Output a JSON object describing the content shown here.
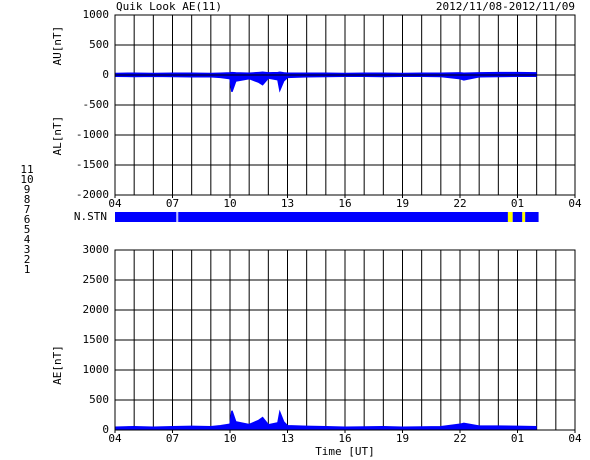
{
  "header": {
    "title": "Quik Look AE(11)",
    "date_range": "2012/11/08-2012/11/09",
    "x_label": "Time [UT]"
  },
  "stations": [
    {
      "label": "11",
      "color": "#00d8d8"
    },
    {
      "label": "10",
      "color": "#e000e0"
    },
    {
      "label": "9",
      "color": "#2020c0"
    },
    {
      "label": "8",
      "color": "#f0e000"
    },
    {
      "label": "7",
      "color": "#20c020"
    },
    {
      "label": "6",
      "color": "#e00000"
    },
    {
      "label": "5",
      "color": "#d0d0d0"
    },
    {
      "label": "4",
      "color": "#909090"
    },
    {
      "label": "3",
      "color": "#008080"
    },
    {
      "label": "2",
      "color": "#8000a0"
    },
    {
      "label": "1",
      "color": "#2020e0"
    }
  ],
  "nstn": {
    "label": "N.STN",
    "segments": [
      {
        "x0": 4,
        "x1": 7.2,
        "color": "#0000ff"
      },
      {
        "x0": 7.2,
        "x1": 7.3,
        "color": "#c0c0ff"
      },
      {
        "x0": 7.3,
        "x1": 24.5,
        "color": "#0000ff"
      },
      {
        "x0": 24.5,
        "x1": 24.75,
        "color": "#ffff00"
      },
      {
        "x0": 24.75,
        "x1": 25.25,
        "color": "#0000ff"
      },
      {
        "x0": 25.25,
        "x1": 25.4,
        "color": "#ffff00"
      },
      {
        "x0": 25.4,
        "x1": 26.1,
        "color": "#0000ff"
      }
    ]
  },
  "chart_data": [
    {
      "type": "area",
      "ylabels": [
        "AU[nT]",
        "AL[nT]"
      ],
      "x": [
        4,
        5,
        6,
        7,
        8,
        9,
        9.5,
        10,
        10.1,
        10.3,
        11,
        11.5,
        11.7,
        12,
        12.5,
        12.6,
        12.8,
        13,
        14,
        15,
        16,
        17,
        18,
        19,
        20,
        21,
        22,
        22.2,
        23,
        24,
        25,
        26
      ],
      "series": [
        {
          "color": "#0000ff",
          "values": [
            25,
            30,
            25,
            30,
            30,
            25,
            30,
            35,
            40,
            35,
            30,
            40,
            45,
            35,
            40,
            45,
            35,
            30,
            30,
            30,
            25,
            30,
            30,
            25,
            30,
            30,
            35,
            30,
            35,
            40,
            40,
            35
          ]
        },
        {
          "color": "#0000ff",
          "values": [
            -20,
            -25,
            -20,
            -25,
            -30,
            -30,
            -40,
            -60,
            -280,
            -100,
            -60,
            -120,
            -160,
            -50,
            -80,
            -250,
            -100,
            -40,
            -30,
            -25,
            -20,
            -20,
            -25,
            -20,
            -20,
            -25,
            -60,
            -80,
            -30,
            -25,
            -20,
            -20
          ]
        }
      ],
      "xlim": [
        4,
        28
      ],
      "xticks": [
        {
          "value": 4,
          "label": "04"
        },
        {
          "value": 7,
          "label": "07"
        },
        10,
        13,
        16,
        19,
        22,
        {
          "value": 25,
          "label": "01"
        },
        {
          "value": 28,
          "label": "04"
        }
      ],
      "x_minor_step": 1,
      "ylim": [
        -2000,
        1000
      ],
      "yticks": [
        -2000,
        -1500,
        -1000,
        -500,
        0,
        500,
        1000
      ],
      "grid": true
    },
    {
      "type": "area",
      "ylabels": [
        "AE[nT]"
      ],
      "x": [
        4,
        5,
        6,
        7,
        8,
        9,
        9.5,
        10,
        10.1,
        10.3,
        11,
        11.5,
        11.7,
        12,
        12.5,
        12.6,
        12.8,
        13,
        14,
        15,
        16,
        17,
        18,
        19,
        20,
        21,
        22,
        22.2,
        23,
        24,
        25,
        26
      ],
      "series": [
        {
          "color": "#0000ff",
          "values": [
            45,
            55,
            45,
            55,
            60,
            55,
            70,
            95,
            320,
            135,
            90,
            160,
            205,
            85,
            120,
            295,
            135,
            70,
            60,
            55,
            45,
            50,
            55,
            45,
            50,
            55,
            95,
            110,
            65,
            65,
            60,
            55
          ]
        }
      ],
      "xlim": [
        4,
        28
      ],
      "xticks": [
        {
          "value": 4,
          "label": "04"
        },
        {
          "value": 7,
          "label": "07"
        },
        10,
        13,
        16,
        19,
        22,
        {
          "value": 25,
          "label": "01"
        },
        {
          "value": 28,
          "label": "04"
        }
      ],
      "x_minor_step": 1,
      "ylim": [
        0,
        3000
      ],
      "yticks": [
        0,
        500,
        1000,
        1500,
        2000,
        2500,
        3000
      ],
      "grid": true
    }
  ]
}
